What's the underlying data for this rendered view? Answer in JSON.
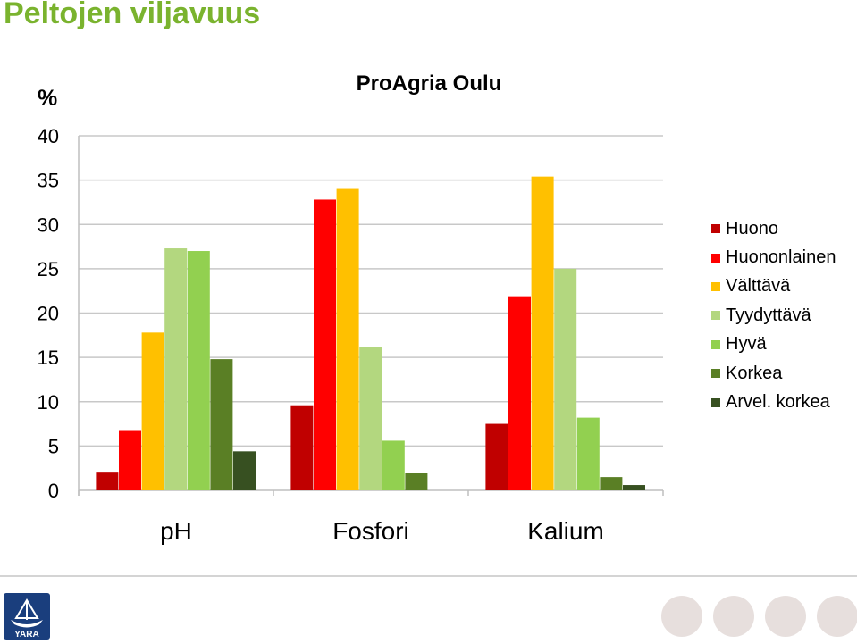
{
  "slide": {
    "title": "Peltojen viljavuus"
  },
  "chart_data": {
    "type": "bar",
    "title": "ProAgria Oulu",
    "ylabel": "%",
    "xlabel": "",
    "ylim": [
      0,
      40
    ],
    "yticks": [
      0,
      5,
      10,
      15,
      20,
      25,
      30,
      35,
      40
    ],
    "grid": true,
    "legend_position": "right",
    "categories": [
      "pH",
      "Fosfori",
      "Kalium"
    ],
    "series": [
      {
        "name": "Huono",
        "color": "#c00000",
        "values": [
          2.1,
          9.6,
          7.5
        ]
      },
      {
        "name": "Huononlainen",
        "color": "#ff0000",
        "values": [
          6.8,
          32.8,
          21.9
        ]
      },
      {
        "name": "Välttävä",
        "color": "#ffc000",
        "values": [
          17.8,
          34.0,
          35.4
        ]
      },
      {
        "name": "Tyydyttävä",
        "color": "#b3d77f",
        "values": [
          27.3,
          16.2,
          25.0
        ]
      },
      {
        "name": "Hyvä",
        "color": "#92d050",
        "values": [
          27.0,
          5.6,
          8.2
        ]
      },
      {
        "name": "Korkea",
        "color": "#5a7f25",
        "values": [
          14.8,
          2.0,
          1.5
        ]
      },
      {
        "name": "Arvel. korkea",
        "color": "#375021",
        "values": [
          4.4,
          0.0,
          0.6
        ]
      }
    ]
  },
  "footer": {
    "logo_text": "YARA",
    "logo_color": "#1a3e7d",
    "dot_color": "#e7dfdd"
  }
}
